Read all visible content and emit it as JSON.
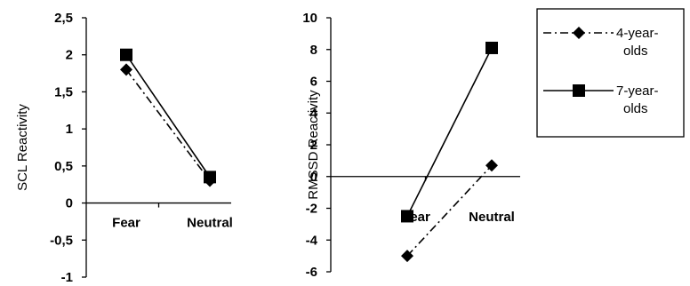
{
  "chart_data": [
    {
      "type": "line",
      "categories": [
        "Fear",
        "Neutral"
      ],
      "series": [
        {
          "name": "4-year-olds",
          "values": [
            1.8,
            0.3
          ],
          "style": "dash-dot",
          "marker": "diamond"
        },
        {
          "name": "7-year-olds",
          "values": [
            2.0,
            0.35
          ],
          "style": "solid",
          "marker": "square"
        }
      ],
      "ylabel": "SCL Reactivity",
      "xlabel": "",
      "ylim": [
        -1,
        2.5
      ],
      "yticks": [
        -1,
        -0.5,
        0,
        0.5,
        1,
        1.5,
        2,
        2.5
      ],
      "ytick_labels": [
        "-1",
        "-0,5",
        "0",
        "0,5",
        "1",
        "1,5",
        "2",
        "2,5"
      ],
      "grid": false
    },
    {
      "type": "line",
      "categories": [
        "Fear",
        "Neutral"
      ],
      "series": [
        {
          "name": "4-year-olds",
          "values": [
            -5.0,
            0.7
          ],
          "style": "dash-dot",
          "marker": "diamond"
        },
        {
          "name": "7-year-olds",
          "values": [
            -2.5,
            8.1
          ],
          "style": "solid",
          "marker": "square"
        }
      ],
      "ylabel": "RMSSD Reactivity",
      "xlabel": "",
      "ylim": [
        -6,
        10
      ],
      "yticks": [
        -6,
        -4,
        -2,
        0,
        2,
        4,
        6,
        8,
        10
      ],
      "ytick_labels": [
        "-6",
        "-4",
        "-2",
        "0",
        "2",
        "4",
        "6",
        "8",
        "10"
      ],
      "grid": false
    }
  ],
  "legend": {
    "position": "right",
    "entries": [
      {
        "line1": "4-year-",
        "line2": "olds",
        "style": "dash-dot",
        "marker": "diamond"
      },
      {
        "line1": "7-year-",
        "line2": "olds",
        "style": "solid",
        "marker": "square"
      }
    ]
  },
  "colors": {
    "series": "#000000",
    "background": "#ffffff"
  }
}
